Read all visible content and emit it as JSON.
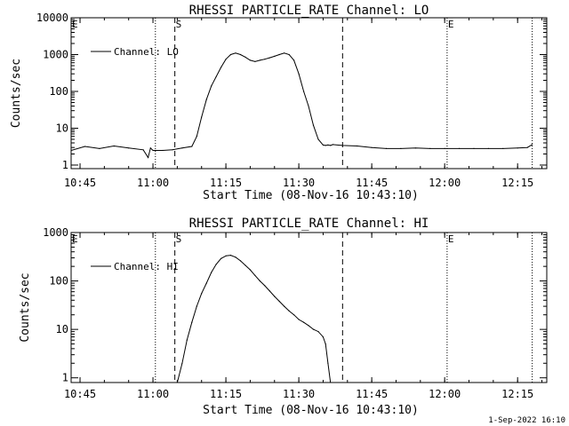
{
  "chart_data": [
    {
      "type": "line",
      "title": "RHESSI PARTICLE_RATE Channel: LO",
      "xlabel": "Start Time (08-Nov-16 10:43:10)",
      "ylabel": "Counts/sec",
      "yscale": "log",
      "xlim": [
        "10:43:10",
        "12:21:00"
      ],
      "ylim": [
        0.8,
        10000
      ],
      "x_ticks": [
        "10:45",
        "11:00",
        "11:15",
        "11:30",
        "11:45",
        "12:00",
        "12:15"
      ],
      "y_ticks": [
        "1",
        "10",
        "100",
        "1000",
        "10000"
      ],
      "legend": "Channel: LO",
      "legend_position": "top-left",
      "markers": [
        {
          "label": "E",
          "time": "10:43:10",
          "style": "dotted"
        },
        {
          "label": "S",
          "time": "11:04:30",
          "style": "dashed"
        },
        {
          "label": "",
          "time": "11:39:00",
          "style": "dashed"
        },
        {
          "label": "",
          "time": "11:00:30",
          "style": "dotted"
        },
        {
          "label": "E",
          "time": "12:00:30",
          "style": "dotted"
        },
        {
          "label": "",
          "time": "12:18:00",
          "style": "dotted"
        }
      ],
      "series": [
        {
          "name": "Channel: LO",
          "x": [
            "10:43:10",
            "10:46:00",
            "10:49:00",
            "10:52:00",
            "10:55:00",
            "10:58:00",
            "10:59:00",
            "10:59:30",
            "11:00:00",
            "11:02:00",
            "11:04:00",
            "11:06:00",
            "11:08:00",
            "11:09:00",
            "11:10:00",
            "11:11:00",
            "11:12:00",
            "11:13:00",
            "11:14:00",
            "11:15:00",
            "11:16:00",
            "11:17:00",
            "11:18:00",
            "11:19:00",
            "11:20:00",
            "11:21:00",
            "11:22:00",
            "11:23:00",
            "11:24:00",
            "11:25:00",
            "11:26:00",
            "11:27:00",
            "11:28:00",
            "11:29:00",
            "11:30:00",
            "11:31:00",
            "11:32:00",
            "11:33:00",
            "11:34:00",
            "11:35:00",
            "11:35:30",
            "11:36:00",
            "11:36:30",
            "11:37:00",
            "11:39:00",
            "11:42:00",
            "11:45:00",
            "11:48:00",
            "11:51:00",
            "11:54:00",
            "11:57:00",
            "12:00:00",
            "12:03:00",
            "12:06:00",
            "12:09:00",
            "12:12:00",
            "12:15:00",
            "12:17:00",
            "12:18:00"
          ],
          "y": [
            2.5,
            3.2,
            2.8,
            3.3,
            2.9,
            2.6,
            1.6,
            2.9,
            2.5,
            2.5,
            2.6,
            2.9,
            3.2,
            6,
            20,
            60,
            140,
            250,
            450,
            750,
            1000,
            1100,
            1000,
            850,
            700,
            650,
            700,
            750,
            820,
            900,
            1000,
            1100,
            1000,
            700,
            300,
            100,
            40,
            12,
            5,
            3.5,
            3.4,
            3.5,
            3.4,
            3.6,
            3.4,
            3.3,
            3.0,
            2.8,
            2.8,
            2.9,
            2.8,
            2.8,
            2.8,
            2.8,
            2.8,
            2.8,
            2.9,
            3.0,
            3.6
          ]
        }
      ]
    },
    {
      "type": "line",
      "title": "RHESSI PARTICLE_RATE Channel: HI",
      "xlabel": "Start Time (08-Nov-16 10:43:10)",
      "ylabel": "Counts/sec",
      "yscale": "log",
      "xlim": [
        "10:43:10",
        "12:21:00"
      ],
      "ylim": [
        0.8,
        1000
      ],
      "x_ticks": [
        "10:45",
        "11:00",
        "11:15",
        "11:30",
        "11:45",
        "12:00",
        "12:15"
      ],
      "y_ticks": [
        "1",
        "10",
        "100",
        "1000"
      ],
      "legend": "Channel: HI",
      "legend_position": "top-left",
      "markers": [
        {
          "label": "E",
          "time": "10:43:10",
          "style": "dotted"
        },
        {
          "label": "S",
          "time": "11:04:30",
          "style": "dashed"
        },
        {
          "label": "",
          "time": "11:39:00",
          "style": "dashed"
        },
        {
          "label": "",
          "time": "11:00:30",
          "style": "dotted"
        },
        {
          "label": "E",
          "time": "12:00:30",
          "style": "dotted"
        },
        {
          "label": "",
          "time": "12:18:00",
          "style": "dotted"
        }
      ],
      "series": [
        {
          "name": "Channel: HI",
          "x": [
            "11:05:00",
            "11:06:00",
            "11:07:00",
            "11:08:00",
            "11:09:00",
            "11:10:00",
            "11:11:00",
            "11:12:00",
            "11:13:00",
            "11:14:00",
            "11:15:00",
            "11:16:00",
            "11:17:00",
            "11:18:00",
            "11:19:00",
            "11:20:00",
            "11:21:00",
            "11:22:00",
            "11:23:00",
            "11:24:00",
            "11:25:00",
            "11:26:00",
            "11:27:00",
            "11:28:00",
            "11:29:00",
            "11:30:00",
            "11:31:00",
            "11:32:00",
            "11:33:00",
            "11:34:00",
            "11:35:00",
            "11:35:30",
            "11:36:00",
            "11:36:30"
          ],
          "y": [
            0.8,
            2,
            6,
            14,
            30,
            55,
            90,
            150,
            220,
            290,
            330,
            340,
            310,
            260,
            210,
            170,
            130,
            100,
            80,
            62,
            48,
            38,
            30,
            24,
            20,
            16,
            14,
            12,
            10,
            9,
            7,
            5,
            2,
            0.8
          ]
        }
      ]
    }
  ],
  "footer": {
    "timestamp": "1-Sep-2022 16:10"
  }
}
